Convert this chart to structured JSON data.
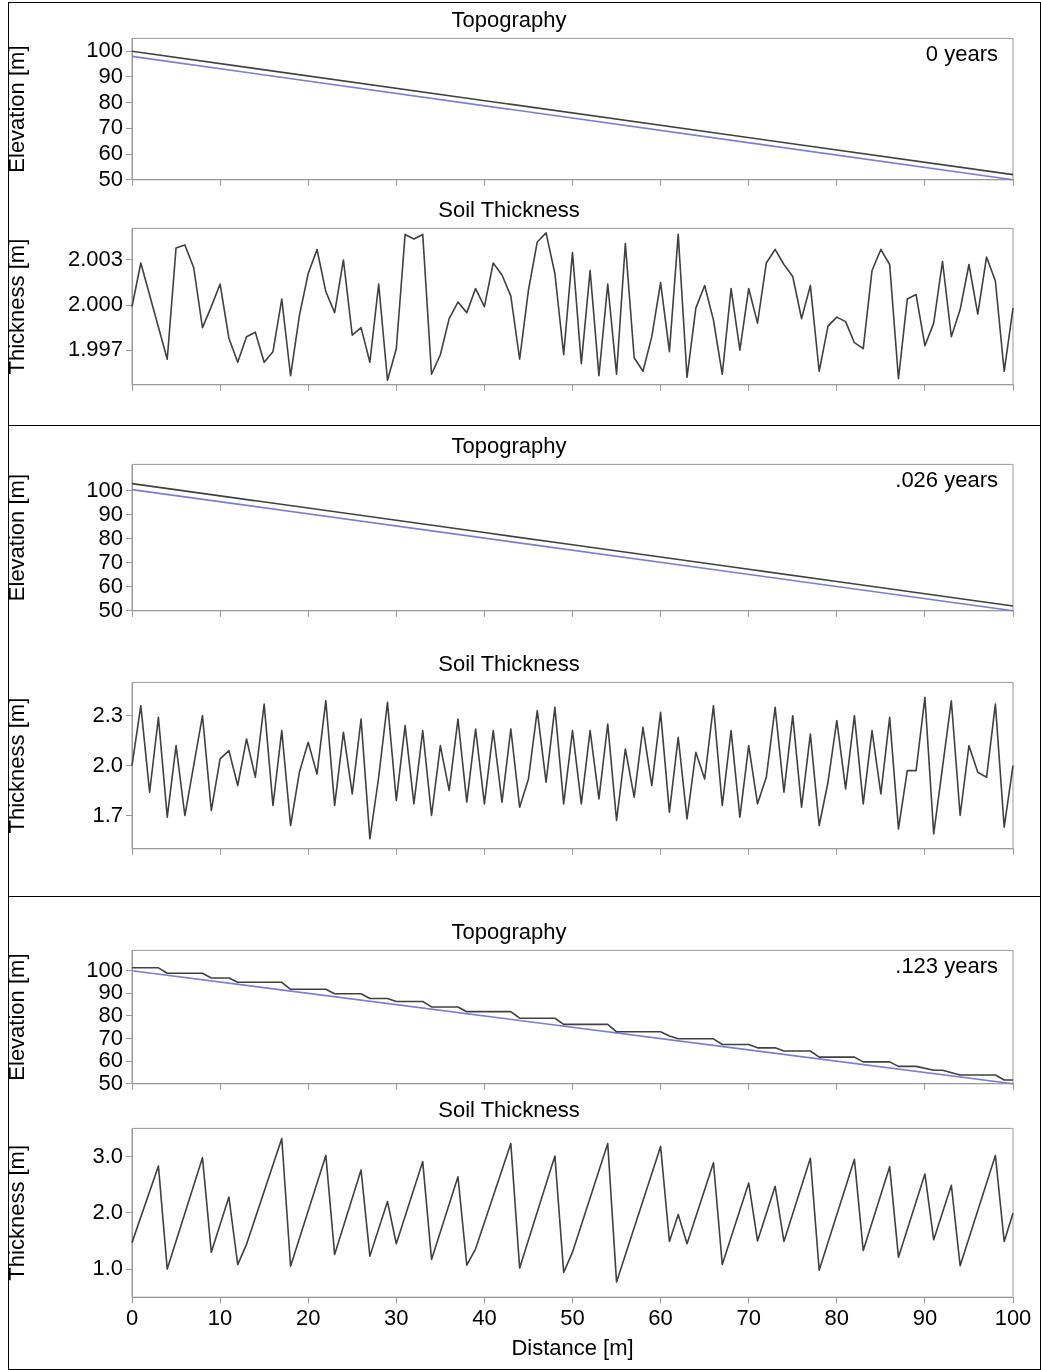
{
  "chart_data": [
    {
      "type": "line",
      "title": "Topography",
      "ylabel": "Elevation [m]",
      "annotations": [
        "0 years"
      ],
      "xlim": [
        0,
        100
      ],
      "xticks": [
        0,
        10,
        20,
        30,
        40,
        50,
        60,
        70,
        80,
        90,
        100
      ],
      "ylim": [
        50,
        105
      ],
      "yticks": [
        50,
        60,
        70,
        80,
        90,
        100
      ],
      "tick_labels": "y",
      "series": [
        {
          "color": "#404040",
          "x": [
            0,
            100
          ],
          "values": [
            100,
            52
          ]
        },
        {
          "color": "#7b7bd8",
          "x": [
            0,
            100
          ],
          "values": [
            98,
            50
          ]
        }
      ]
    },
    {
      "type": "line",
      "title": "Soil Thickness",
      "ylabel": "Thickness [m]",
      "xlim": [
        0,
        100
      ],
      "xticks": [
        0,
        10,
        20,
        30,
        40,
        50,
        60,
        70,
        80,
        90,
        100
      ],
      "ylim": [
        1.9947,
        2.0051
      ],
      "yticks": [
        1.997,
        {
          "value": 2,
          "label": "2.000"
        },
        2.003
      ],
      "tick_labels": "y",
      "series": [
        {
          "color": "#404040",
          "x": [
            0,
            1,
            4,
            5,
            6,
            7,
            8,
            9,
            10,
            11,
            12,
            13,
            14,
            15,
            16,
            17,
            18,
            19,
            20,
            21,
            22,
            23,
            24,
            25,
            26,
            27,
            28,
            29,
            30,
            31,
            32,
            33,
            34,
            35,
            36,
            37,
            38,
            39,
            40,
            41,
            42,
            43,
            44,
            45,
            46,
            47,
            48,
            49,
            50,
            51,
            52,
            53,
            54,
            55,
            56,
            57,
            58,
            59,
            60,
            61,
            62,
            63,
            64,
            65,
            66,
            67,
            68,
            69,
            70,
            71,
            72,
            73,
            74,
            75,
            76,
            77,
            78,
            79,
            80,
            81,
            82,
            83,
            84,
            85,
            86,
            87,
            88,
            89,
            90,
            91,
            92,
            93,
            94,
            95,
            96,
            97,
            98,
            99,
            100
          ],
          "values": [
            1.9999,
            2.0028,
            1.9964,
            2.0038,
            2.004,
            2.0025,
            1.9985,
            1.9999,
            2.0014,
            1.9978,
            1.9962,
            1.9979,
            1.9982,
            1.9962,
            1.9969,
            2.0004,
            1.9953,
            1.9993,
            2.0021,
            2.0037,
            2.0009,
            1.9995,
            2.003,
            1.998,
            1.9985,
            1.9962,
            2.0014,
            1.995,
            1.9971,
            2.0047,
            2.0044,
            2.0047,
            1.9954,
            1.9967,
            1.9991,
            2.0002,
            1.9995,
            2.0011,
            1.9999,
            2.0028,
            2.002,
            2.0006,
            1.9964,
            2.001,
            2.0042,
            2.0048,
            2.0021,
            1.9967,
            2.0035,
            1.9961,
            2.0023,
            1.9953,
            2.0014,
            1.9954,
            2.0041,
            1.9965,
            1.9956,
            1.9979,
            2.0015,
            1.9969,
            2.0047,
            1.9952,
            1.9998,
            2.0013,
            1.999,
            1.9954,
            2.0011,
            1.997,
            2.0011,
            1.9988,
            2.0028,
            2.0037,
            2.0027,
            2.0019,
            1.9991,
            2.0013,
            1.9956,
            1.9986,
            1.9992,
            1.9989,
            1.9975,
            1.9971,
            2.0023,
            2.0037,
            2.0027,
            1.9951,
            2.0004,
            2.0007,
            1.9973,
            1.9988,
            2.0029,
            1.9979,
            1.9997,
            2.0027,
            1.9994,
            2.0032,
            2.0016,
            1.9956,
            1.9998
          ]
        }
      ]
    },
    {
      "type": "line",
      "title": "Topography",
      "ylabel": "Elevation [m]",
      "annotations": [
        ".026 years"
      ],
      "xlim": [
        0,
        100
      ],
      "xticks": [
        0,
        10,
        20,
        30,
        40,
        50,
        60,
        70,
        80,
        90,
        100
      ],
      "ylim": [
        50,
        111
      ],
      "yticks": [
        50,
        60,
        70,
        80,
        90,
        100
      ],
      "tick_labels": "y",
      "series": [
        {
          "color": "#404040",
          "x": [
            0,
            10,
            20,
            30,
            40,
            50,
            60,
            70,
            80,
            90,
            100
          ],
          "values": [
            103,
            97.9,
            92.8,
            87.7,
            82.6,
            77.5,
            72.4,
            67.3,
            62.2,
            57.1,
            52
          ]
        },
        {
          "color": "#7b7bd8",
          "x": [
            0,
            100
          ],
          "values": [
            100.5,
            50
          ]
        }
      ]
    },
    {
      "type": "line",
      "title": "Soil Thickness",
      "ylabel": "Thickness [m]",
      "xlim": [
        0,
        100
      ],
      "xticks": [
        0,
        10,
        20,
        30,
        40,
        50,
        60,
        70,
        80,
        90,
        100
      ],
      "ylim": [
        1.5,
        2.5
      ],
      "yticks": [
        1.7,
        {
          "value": 2,
          "label": "2.0"
        },
        2.3
      ],
      "tick_labels": "y",
      "series": [
        {
          "color": "#404040",
          "x": [
            0,
            1,
            2,
            3,
            4,
            5,
            6,
            7,
            8,
            9,
            10,
            11,
            12,
            13,
            14,
            15,
            16,
            17,
            18,
            19,
            20,
            21,
            22,
            23,
            24,
            25,
            26,
            27,
            28,
            29,
            30,
            31,
            32,
            33,
            34,
            35,
            36,
            37,
            38,
            39,
            40,
            41,
            42,
            43,
            44,
            45,
            46,
            47,
            48,
            49,
            50,
            51,
            52,
            53,
            54,
            55,
            56,
            57,
            58,
            59,
            60,
            61,
            62,
            63,
            64,
            65,
            66,
            67,
            68,
            69,
            70,
            71,
            72,
            73,
            74,
            75,
            76,
            77,
            78,
            79,
            80,
            81,
            82,
            83,
            84,
            85,
            86,
            87,
            88,
            89,
            90,
            91,
            93,
            94,
            95,
            96,
            97,
            98,
            99,
            100
          ],
          "values": [
            2.0,
            2.36,
            1.84,
            2.29,
            1.69,
            2.12,
            1.7,
            2.0,
            2.3,
            1.73,
            2.04,
            2.09,
            1.88,
            2.16,
            1.93,
            2.37,
            1.76,
            2.21,
            1.64,
            1.96,
            2.14,
            1.95,
            2.39,
            1.76,
            2.2,
            1.83,
            2.28,
            1.56,
            1.93,
            2.38,
            1.79,
            2.24,
            1.77,
            2.21,
            1.7,
            2.12,
            1.85,
            2.28,
            1.78,
            2.22,
            1.77,
            2.21,
            1.78,
            2.22,
            1.75,
            1.92,
            2.33,
            1.9,
            2.35,
            1.77,
            2.21,
            1.77,
            2.21,
            1.8,
            2.25,
            1.67,
            2.1,
            1.81,
            2.23,
            1.88,
            2.32,
            1.72,
            2.17,
            1.68,
            2.08,
            1.92,
            2.36,
            1.76,
            2.21,
            1.69,
            2.12,
            1.77,
            1.93,
            2.35,
            1.84,
            2.3,
            1.75,
            2.19,
            1.64,
            1.9,
            2.27,
            1.86,
            2.3,
            1.77,
            2.21,
            1.83,
            2.29,
            1.62,
            1.97,
            1.97,
            2.41,
            1.59,
            2.39,
            1.7,
            2.12,
            1.96,
            1.93,
            2.37,
            1.63,
            2.0
          ]
        }
      ]
    },
    {
      "type": "line",
      "title": "Topography",
      "ylabel": "Elevation [m]",
      "annotations": [
        ".123 years"
      ],
      "xlim": [
        0,
        100
      ],
      "xticks": [
        0,
        10,
        20,
        30,
        40,
        50,
        60,
        70,
        80,
        90,
        100
      ],
      "ylim": [
        50,
        109
      ],
      "yticks": [
        50,
        60,
        70,
        80,
        90,
        100
      ],
      "tick_labels": "y",
      "series": [
        {
          "color": "#404040",
          "x": [
            0,
            3,
            4,
            8,
            9,
            11,
            12,
            17,
            18,
            22,
            23,
            26,
            27,
            29,
            30,
            33,
            34,
            37,
            38,
            43,
            44,
            48,
            49,
            54,
            55,
            60,
            61,
            62,
            66,
            67,
            70,
            71,
            73,
            74,
            77,
            78,
            82,
            83,
            86,
            87,
            89,
            91,
            92,
            94,
            98,
            99,
            100
          ],
          "values": [
            101.3,
            101.3,
            98.9,
            98.9,
            96.8,
            96.8,
            94.9,
            94.9,
            91.8,
            91.8,
            89.8,
            89.8,
            87.7,
            87.7,
            86.4,
            86.4,
            84.0,
            84.0,
            81.9,
            81.9,
            79.0,
            79.0,
            76.3,
            76.3,
            73.0,
            73.0,
            71.1,
            69.9,
            69.9,
            67.4,
            67.4,
            65.9,
            65.9,
            64.5,
            64.5,
            61.8,
            61.8,
            59.7,
            59.7,
            57.7,
            57.7,
            56.0,
            56.0,
            53.9,
            53.9,
            51.7,
            51.7
          ]
        },
        {
          "color": "#7b7bd8",
          "x": [
            0,
            100
          ],
          "values": [
            100,
            50
          ]
        }
      ]
    },
    {
      "type": "line",
      "title": "Soil Thickness",
      "ylabel": "Thickness [m]",
      "xlabel": "Distance [m]",
      "xlim": [
        0,
        100
      ],
      "xticks": [
        0,
        10,
        20,
        30,
        40,
        50,
        60,
        70,
        80,
        90,
        100
      ],
      "ylim": [
        0.5,
        3.5
      ],
      "yticks": [
        {
          "value": 1,
          "label": "1.0"
        },
        {
          "value": 2,
          "label": "2.0"
        },
        {
          "value": 3,
          "label": "3.0"
        }
      ],
      "series": [
        {
          "color": "#404040",
          "x": [
            0,
            3,
            4,
            8,
            9,
            11,
            12,
            13,
            17,
            18,
            22,
            23,
            26,
            27,
            29,
            30,
            33,
            34,
            37,
            38,
            39,
            43,
            44,
            48,
            49,
            50,
            54,
            55,
            60,
            61,
            62,
            63,
            66,
            67,
            70,
            71,
            73,
            74,
            77,
            78,
            82,
            83,
            86,
            87,
            90,
            91,
            93,
            94,
            98,
            99,
            100
          ],
          "values": [
            1.47,
            2.83,
            1.0,
            2.98,
            1.3,
            2.28,
            1.08,
            1.44,
            3.32,
            1.05,
            3.02,
            1.26,
            2.76,
            1.23,
            2.2,
            1.45,
            2.91,
            1.17,
            2.64,
            1.07,
            1.36,
            3.23,
            1.02,
            3.01,
            0.94,
            1.3,
            3.23,
            0.77,
            3.18,
            1.49,
            1.97,
            1.45,
            2.89,
            1.08,
            2.53,
            1.5,
            2.47,
            1.49,
            2.97,
            0.98,
            2.95,
            1.33,
            2.82,
            1.21,
            2.69,
            1.52,
            2.49,
            1.06,
            3.02,
            1.49,
            1.99
          ]
        }
      ]
    }
  ]
}
